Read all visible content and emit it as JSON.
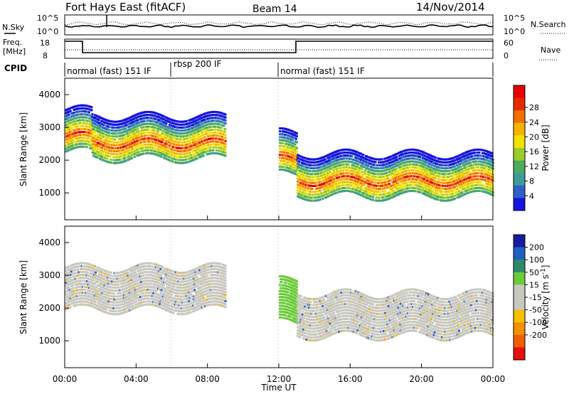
{
  "header": {
    "title": "Fort Hays East (fitACF)",
    "beam": "Beam 14",
    "date": "14/Nov/2014"
  },
  "noise_panel": {
    "left_label": "N.Sky",
    "left_ticks": [
      "10^5",
      "10^0"
    ],
    "right_ticks": [
      "10^5",
      "10^0"
    ],
    "right_label": "N.Search"
  },
  "freq_panel": {
    "left_label_1": "Freq.",
    "left_label_2": "[MHz]",
    "left_ticks": [
      "18",
      "8"
    ],
    "right_ticks": [
      "60",
      "0"
    ],
    "right_label": "Nave"
  },
  "cpid_panel": {
    "label": "CPID",
    "segments": [
      "normal (fast) 151 IF",
      "rbsp 200 IF",
      "normal (fast) 151 IF"
    ]
  },
  "x_axis": {
    "title": "Time UT",
    "ticks": [
      "00:00",
      "04:00",
      "08:00",
      "12:00",
      "16:00",
      "20:00",
      "00:00"
    ]
  },
  "chart_data": [
    {
      "type": "heatmap",
      "panel": "power",
      "xlabel": "Time UT",
      "ylabel": "Slant Range [km]",
      "x_range_hours": [
        0,
        24
      ],
      "y_range_km": [
        180,
        4500
      ],
      "y_ticks": [
        1000,
        2000,
        3000,
        4000
      ],
      "colorbar": {
        "label": "Power [dB]",
        "ticks": [
          4,
          8,
          12,
          16,
          20,
          24,
          28
        ],
        "colors": [
          "#1515e0",
          "#2f5fc8",
          "#3d9b9b",
          "#4cab5a",
          "#9ccc2a",
          "#f1e400",
          "#f5b400",
          "#f07000",
          "#e62a00",
          "#e60000"
        ]
      },
      "echo_bands": [
        {
          "t0": 0.0,
          "t1": 1.5,
          "center_km": 2700,
          "color": "orange"
        },
        {
          "t0": 1.5,
          "t1": 9.0,
          "center_km": 2500,
          "color": "orange"
        },
        {
          "t0": 12.0,
          "t1": 13.0,
          "center_km": 2000,
          "color": "orange"
        },
        {
          "t0": 13.0,
          "t1": 24.0,
          "center_km": 1350,
          "color": "red"
        }
      ]
    },
    {
      "type": "heatmap",
      "panel": "velocity",
      "xlabel": "Time UT",
      "ylabel": "Slant Range [km]",
      "x_range_hours": [
        0,
        24
      ],
      "y_range_km": [
        180,
        4500
      ],
      "y_ticks": [
        1000,
        2000,
        3000,
        4000
      ],
      "colorbar": {
        "label": "Velocity [m s^-1]",
        "ticks": [
          200,
          100,
          50,
          15,
          -15,
          -50,
          -100,
          -200
        ],
        "colors": [
          "#1a1aa0",
          "#2060c0",
          "#2f8a6a",
          "#6ccb3a",
          "#c8c8c0",
          "#c8c8c0",
          "#f5c000",
          "#f59000",
          "#f06000",
          "#e61010"
        ]
      },
      "echo_bands": [
        {
          "t0": 0.0,
          "t1": 9.0,
          "center_km": 2400,
          "color": "grey"
        },
        {
          "t0": 12.0,
          "t1": 13.0,
          "center_km": 2000,
          "color": "green"
        },
        {
          "t0": 13.0,
          "t1": 24.0,
          "center_km": 1600,
          "color": "grey"
        }
      ]
    }
  ]
}
